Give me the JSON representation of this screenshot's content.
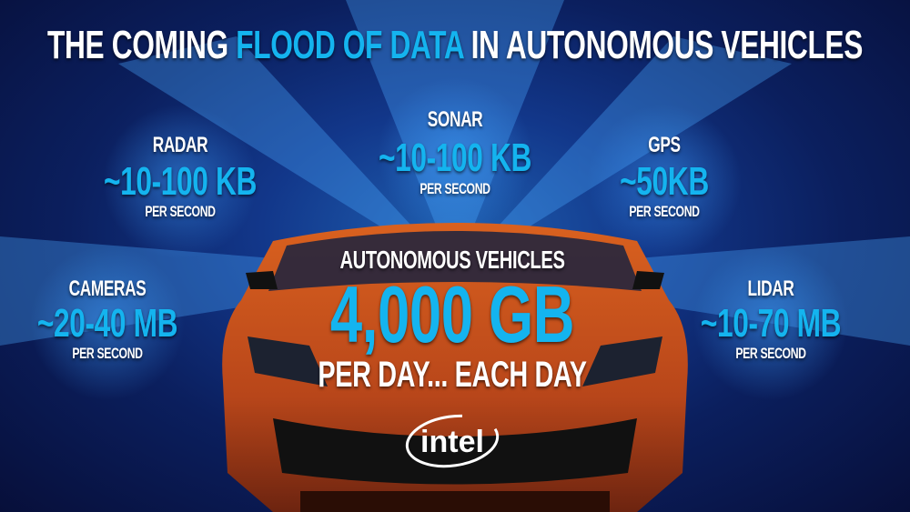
{
  "title": {
    "part1": "THE COMING",
    "highlight": "FLOOD OF DATA",
    "part2": "IN AUTONOMOUS VEHICLES"
  },
  "sensors": [
    {
      "name": "RADAR",
      "rate": "~10-100 KB",
      "unit": "PER SECOND"
    },
    {
      "name": "SONAR",
      "rate": "~10-100 KB",
      "unit": "PER SECOND"
    },
    {
      "name": "GPS",
      "rate": "~50KB",
      "unit": "PER SECOND"
    },
    {
      "name": "CAMERAS",
      "rate": "~20-40 MB",
      "unit": "PER SECOND"
    },
    {
      "name": "LIDAR",
      "rate": "~10-70 MB",
      "unit": "PER SECOND"
    }
  ],
  "center": {
    "label": "AUTONOMOUS VEHICLES",
    "value": "4,000 GB",
    "sub": "PER DAY... EACH DAY"
  },
  "logo": {
    "text": "intel"
  },
  "colors": {
    "accent": "#14b4ef",
    "car": "#c4521a",
    "background": "#0b1f5e"
  }
}
